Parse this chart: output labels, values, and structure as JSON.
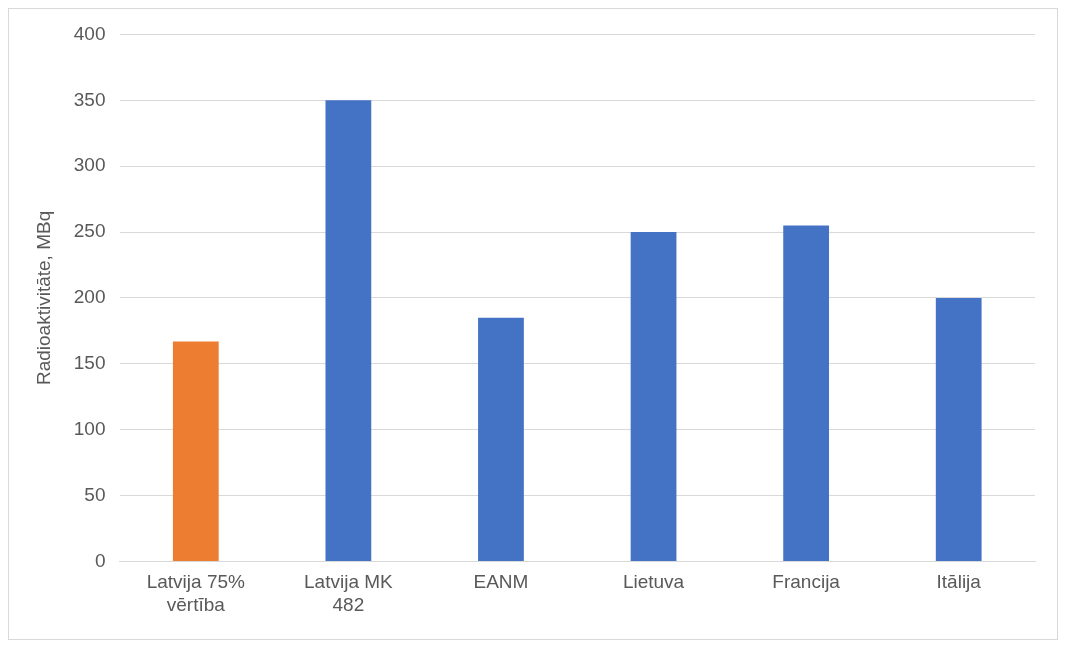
{
  "chart_data": {
    "type": "bar",
    "ylabel": "Radioaktivitāte, MBq",
    "categories": [
      "Latvija 75% vērtība",
      "Latvija MK 482",
      "EANM",
      "Lietuva",
      "Francija",
      "Itālija"
    ],
    "values": [
      167,
      350,
      185,
      250,
      255,
      200
    ],
    "colors": [
      "#ed7d31",
      "#4472c4",
      "#4472c4",
      "#4472c4",
      "#4472c4",
      "#4472c4"
    ],
    "ylim": [
      0,
      400
    ],
    "yticks": [
      0,
      50,
      100,
      150,
      200,
      250,
      300,
      350,
      400
    ],
    "grid": "y",
    "legend": false
  }
}
